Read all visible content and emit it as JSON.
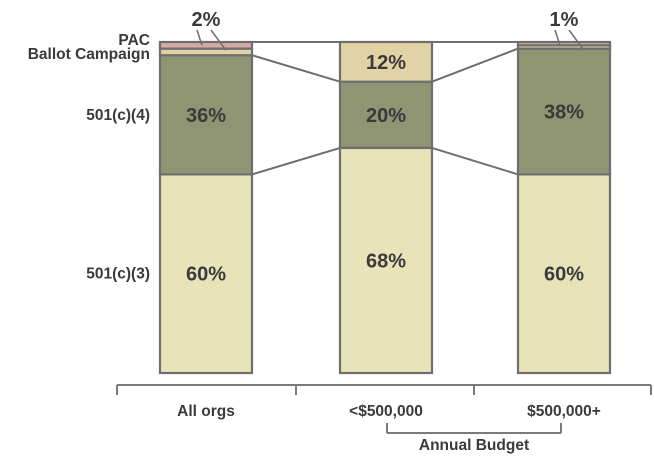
{
  "chart_data": {
    "type": "bar",
    "stacked": true,
    "categories": [
      "All orgs",
      "<$500,000",
      "$500,000+"
    ],
    "series": [
      {
        "name": "501(c)(3)",
        "values": [
          60,
          68,
          60
        ],
        "labels": [
          "60%",
          "68%",
          "60%"
        ],
        "color": "#e8e3b8"
      },
      {
        "name": "501(c)(4)",
        "values": [
          36,
          20,
          38
        ],
        "labels": [
          "36%",
          "20%",
          "38%"
        ],
        "color": "#8f9472"
      },
      {
        "name": "Ballot Campaign",
        "values": [
          2,
          12,
          1
        ],
        "labels": [
          "",
          "12%",
          ""
        ],
        "color": "#e2d3a6"
      },
      {
        "name": "PAC",
        "values": [
          2,
          0,
          1
        ],
        "labels": [
          "",
          "",
          ""
        ],
        "color": "#d4aaa4"
      }
    ],
    "top_annotations": [
      "2%",
      "",
      "1%"
    ],
    "xlabel": "",
    "ylabel": "",
    "group_label": "Annual Budget",
    "ylim": [
      0,
      100
    ],
    "legend": "left",
    "grid": false,
    "colors": {
      "outline": "#6e6e6e",
      "text": "#3a3a3a"
    }
  }
}
